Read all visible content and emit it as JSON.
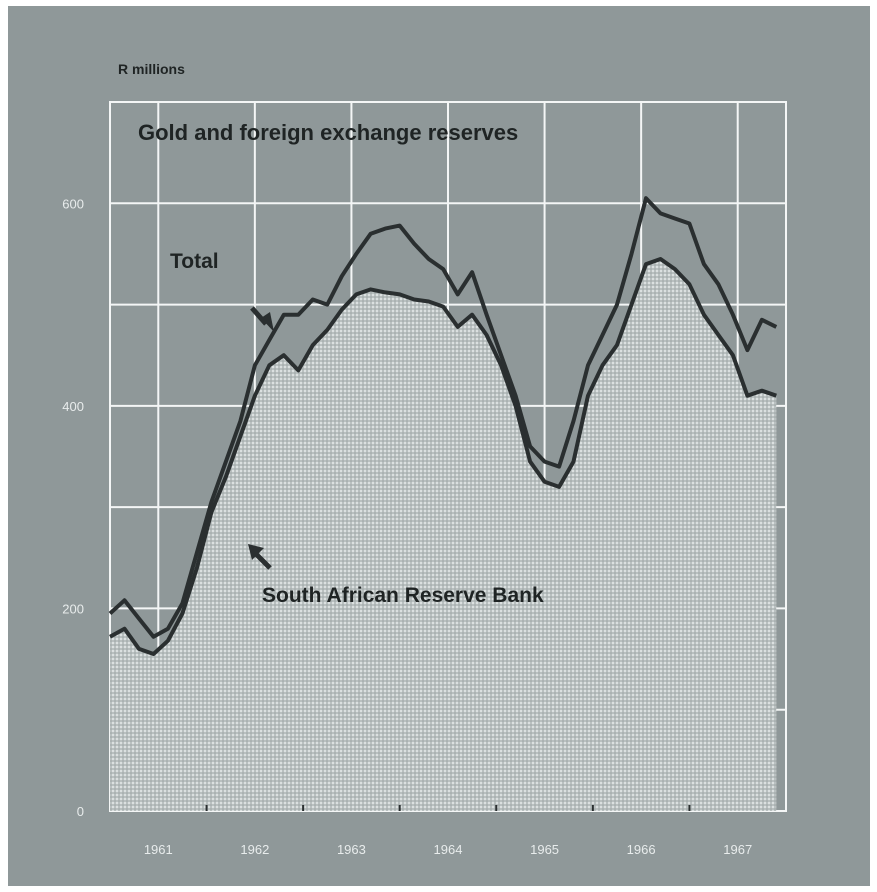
{
  "chart_data": {
    "type": "area",
    "title": "Gold and foreign exchange reserves",
    "y_unit": "R millions",
    "ylim": [
      0,
      700
    ],
    "y_ticks": [
      0,
      200,
      400,
      600
    ],
    "y_tick_labels": [
      "0",
      "200",
      "400",
      "600"
    ],
    "xlim": [
      1960.5,
      1967.5
    ],
    "x_ticks": [
      1961,
      1962,
      1963,
      1964,
      1965,
      1966,
      1967
    ],
    "x_tick_labels": [
      "1961",
      "1962",
      "1963",
      "1964",
      "1965",
      "1966",
      "1967"
    ],
    "grid": true,
    "series": [
      {
        "name": "Total",
        "style": "line",
        "x": [
          1960.5,
          1960.65,
          1960.8,
          1960.95,
          1961.1,
          1961.25,
          1961.4,
          1961.55,
          1961.7,
          1961.85,
          1962.0,
          1962.15,
          1962.3,
          1962.45,
          1962.6,
          1962.75,
          1962.9,
          1963.05,
          1963.2,
          1963.35,
          1963.5,
          1963.65,
          1963.8,
          1963.95,
          1964.1,
          1964.25,
          1964.4,
          1964.55,
          1964.7,
          1964.85,
          1965.0,
          1965.15,
          1965.3,
          1965.45,
          1965.6,
          1965.75,
          1965.9,
          1966.05,
          1966.2,
          1966.35,
          1966.5,
          1966.65,
          1966.8,
          1966.95,
          1967.1,
          1967.25,
          1967.4
        ],
        "values": [
          195,
          208,
          190,
          172,
          180,
          205,
          255,
          305,
          345,
          385,
          440,
          465,
          490,
          490,
          505,
          500,
          528,
          550,
          570,
          575,
          578,
          560,
          545,
          535,
          510,
          532,
          490,
          450,
          410,
          360,
          345,
          340,
          385,
          440,
          470,
          500,
          550,
          605,
          590,
          585,
          580,
          540,
          520,
          490,
          455,
          485,
          478
        ]
      },
      {
        "name": "South African Reserve Bank",
        "style": "shaded-area",
        "x": [
          1960.5,
          1960.65,
          1960.8,
          1960.95,
          1961.1,
          1961.25,
          1961.4,
          1961.55,
          1961.7,
          1961.85,
          1962.0,
          1962.15,
          1962.3,
          1962.45,
          1962.6,
          1962.75,
          1962.9,
          1963.05,
          1963.2,
          1963.35,
          1963.5,
          1963.65,
          1963.8,
          1963.95,
          1964.1,
          1964.25,
          1964.4,
          1964.55,
          1964.7,
          1964.85,
          1965.0,
          1965.15,
          1965.3,
          1965.45,
          1965.6,
          1965.75,
          1965.9,
          1966.05,
          1966.2,
          1966.35,
          1966.5,
          1966.65,
          1966.8,
          1966.95,
          1967.1,
          1967.25,
          1967.4
        ],
        "values": [
          172,
          180,
          160,
          155,
          168,
          195,
          240,
          295,
          330,
          370,
          410,
          440,
          450,
          435,
          460,
          475,
          495,
          510,
          515,
          512,
          510,
          505,
          503,
          498,
          478,
          490,
          470,
          440,
          400,
          345,
          325,
          320,
          345,
          410,
          440,
          460,
          500,
          540,
          545,
          535,
          520,
          490,
          470,
          450,
          410,
          415,
          410
        ]
      }
    ],
    "annotations": [
      "Total",
      "South African Reserve Bank"
    ],
    "colors": {
      "background": "#8f9899",
      "grid": "#f4f6f6",
      "line": "#2a2f30",
      "area_fill": "#c9cfcf",
      "text": "#1f2424",
      "tick_text": "#e8ecec"
    }
  }
}
